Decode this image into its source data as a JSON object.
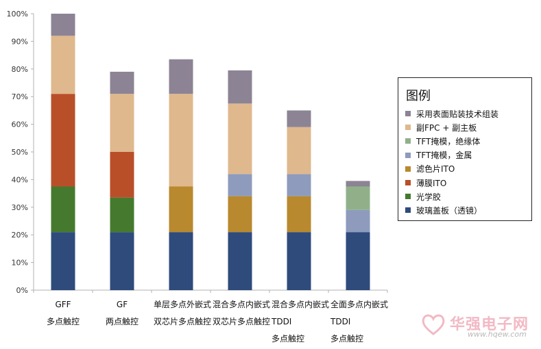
{
  "chart_data": {
    "type": "bar",
    "stacked": true,
    "ylim": [
      0,
      100
    ],
    "yticks": [
      "0%",
      "10%",
      "20%",
      "30%",
      "40%",
      "50%",
      "60%",
      "70%",
      "80%",
      "90%",
      "100%"
    ],
    "grid": false,
    "legend_position": "right",
    "categories": [
      [
        "GFF",
        "多点触控"
      ],
      [
        "GF",
        "两点触控"
      ],
      [
        "单层多点外嵌式",
        "双芯片多点触控"
      ],
      [
        "混合多点内嵌式",
        "双芯片多点触控"
      ],
      [
        "混合多点内嵌式",
        "TDDI",
        "多点触控"
      ],
      [
        "全面多点内嵌式",
        "TDDI",
        "多点触控"
      ]
    ],
    "legend_title": "图例",
    "series": [
      {
        "name": "玻璃盖板（透镜）",
        "color": "#2f4b7c",
        "values": [
          21,
          21,
          21,
          21,
          21,
          21
        ]
      },
      {
        "name": "光学胶",
        "color": "#457a2e",
        "values": [
          16.5,
          12.5,
          0,
          0,
          0,
          0
        ]
      },
      {
        "name": "薄膜ITO",
        "color": "#b94f28",
        "values": [
          33.5,
          16.5,
          0,
          0,
          0,
          0
        ]
      },
      {
        "name": "滤色片ITO",
        "color": "#b8892e",
        "values": [
          0,
          0,
          16.5,
          13,
          13,
          0
        ]
      },
      {
        "name": "TFT掩模，金属",
        "color": "#8e9bbd",
        "values": [
          0,
          0,
          0,
          8,
          8,
          8
        ]
      },
      {
        "name": "TFT掩模，绝缘体",
        "color": "#91b08a",
        "values": [
          0,
          0,
          0,
          0,
          0,
          8.5
        ]
      },
      {
        "name": "副FPC + 副主板",
        "color": "#dfb88d",
        "values": [
          21,
          21,
          33.5,
          25.5,
          17,
          0
        ]
      },
      {
        "name": "采用表面贴装技术组装",
        "color": "#8c8394",
        "values": [
          8,
          8,
          12.5,
          12,
          6,
          2
        ]
      }
    ]
  },
  "watermark": {
    "text": "华强电子网",
    "url": "www.hqew.com"
  }
}
